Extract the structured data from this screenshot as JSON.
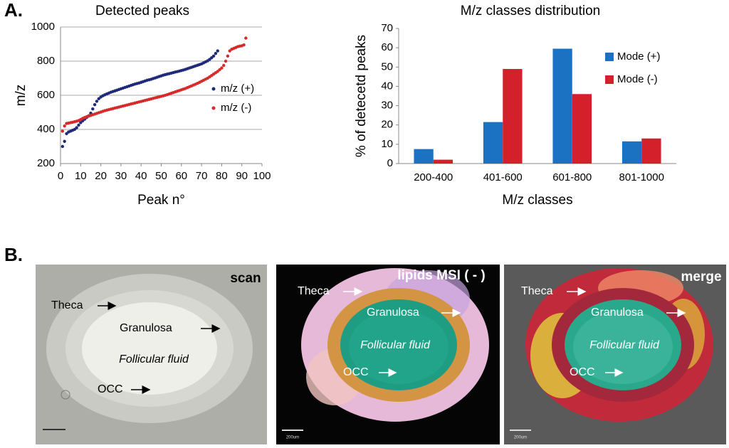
{
  "panel_a_label": "A.",
  "panel_b_label": "B.",
  "chart_data": [
    {
      "type": "scatter",
      "title": "Detected peaks",
      "x_label": "Peak n°",
      "y_label": "m/z",
      "xlim": [
        0,
        100
      ],
      "xticks": [
        0,
        10,
        20,
        30,
        40,
        50,
        60,
        70,
        80,
        90,
        100
      ],
      "ylim": [
        200,
        1000
      ],
      "yticks": [
        200,
        400,
        600,
        800,
        1000
      ],
      "grid": true,
      "legend": "right",
      "series": [
        {
          "name": "m/z (+)",
          "color": "#1f2a78",
          "x": [
            1,
            2,
            3,
            4,
            5,
            6,
            7,
            8,
            9,
            10,
            11,
            12,
            13,
            14,
            15,
            16,
            17,
            18,
            19,
            20,
            21,
            22,
            23,
            24,
            25,
            26,
            27,
            28,
            29,
            30,
            31,
            32,
            33,
            34,
            35,
            36,
            37,
            38,
            39,
            40,
            41,
            42,
            43,
            44,
            45,
            46,
            47,
            48,
            49,
            50,
            51,
            52,
            53,
            54,
            55,
            56,
            57,
            58,
            59,
            60,
            61,
            62,
            63,
            64,
            65,
            66,
            67,
            68,
            69,
            70,
            71,
            72,
            73,
            74,
            75,
            76,
            77,
            78
          ],
          "values": [
            300,
            330,
            375,
            385,
            390,
            395,
            400,
            410,
            425,
            440,
            450,
            460,
            470,
            480,
            495,
            520,
            545,
            565,
            580,
            590,
            597,
            603,
            608,
            613,
            618,
            622,
            626,
            630,
            634,
            638,
            642,
            646,
            650,
            654,
            658,
            662,
            666,
            669,
            672,
            676,
            680,
            684,
            688,
            691,
            694,
            698,
            702,
            706,
            710,
            714,
            718,
            721,
            724,
            727,
            730,
            733,
            736,
            739,
            742,
            745,
            748,
            752,
            756,
            760,
            764,
            768,
            772,
            776,
            780,
            784,
            790,
            796,
            802,
            810,
            820,
            830,
            845,
            860
          ]
        },
        {
          "name": "m/z (-)",
          "color": "#d62b2b",
          "x": [
            1,
            2,
            3,
            4,
            5,
            6,
            7,
            8,
            9,
            10,
            11,
            12,
            13,
            14,
            15,
            16,
            17,
            18,
            19,
            20,
            21,
            22,
            23,
            24,
            25,
            26,
            27,
            28,
            29,
            30,
            31,
            32,
            33,
            34,
            35,
            36,
            37,
            38,
            39,
            40,
            41,
            42,
            43,
            44,
            45,
            46,
            47,
            48,
            49,
            50,
            51,
            52,
            53,
            54,
            55,
            56,
            57,
            58,
            59,
            60,
            61,
            62,
            63,
            64,
            65,
            66,
            67,
            68,
            69,
            70,
            71,
            72,
            73,
            74,
            75,
            76,
            77,
            78,
            79,
            80,
            81,
            82,
            83,
            84,
            85,
            86,
            87,
            88,
            89,
            90,
            91,
            92
          ],
          "values": [
            390,
            420,
            435,
            437,
            440,
            442,
            445,
            448,
            452,
            458,
            465,
            470,
            474,
            478,
            482,
            486,
            490,
            494,
            498,
            502,
            506,
            510,
            513,
            516,
            519,
            522,
            525,
            528,
            531,
            534,
            537,
            540,
            543,
            546,
            549,
            552,
            555,
            558,
            561,
            564,
            567,
            570,
            573,
            576,
            579,
            582,
            585,
            588,
            591,
            594,
            597,
            600,
            604,
            608,
            612,
            616,
            620,
            624,
            628,
            632,
            636,
            640,
            645,
            650,
            655,
            660,
            665,
            670,
            676,
            682,
            688,
            694,
            700,
            708,
            716,
            724,
            732,
            740,
            750,
            760,
            775,
            800,
            830,
            860,
            870,
            875,
            880,
            885,
            888,
            890,
            895,
            935
          ]
        }
      ]
    },
    {
      "type": "bar",
      "title": "M/z classes distribution",
      "x_label": "M/z classes",
      "y_label": "% of detecetd peaks",
      "categories": [
        "200-400",
        "401-600",
        "601-800",
        "801-1000"
      ],
      "ylim": [
        0,
        70
      ],
      "yticks": [
        0,
        10,
        20,
        30,
        40,
        50,
        60,
        70
      ],
      "legend": "right",
      "series": [
        {
          "name": "Mode (+)",
          "color": "#1b72c2",
          "values": [
            7.5,
            21.5,
            59.5,
            11.5
          ]
        },
        {
          "name": "Mode (-)",
          "color": "#d3202b",
          "values": [
            2,
            49,
            36,
            13
          ]
        }
      ]
    }
  ],
  "images": [
    {
      "title": "scan",
      "labels": [
        "Theca",
        "Granulosa",
        "Follicular  fluid",
        "OCC"
      ]
    },
    {
      "title": "lipids MSI ( - )",
      "labels": [
        "Theca",
        "Granulosa",
        "Follicular  fluid",
        "OCC"
      ],
      "scale_bar": "200um"
    },
    {
      "title": "merge",
      "labels": [
        "Theca",
        "Granulosa",
        "Follicular  fluid",
        "OCC"
      ],
      "scale_bar": "200um"
    }
  ]
}
